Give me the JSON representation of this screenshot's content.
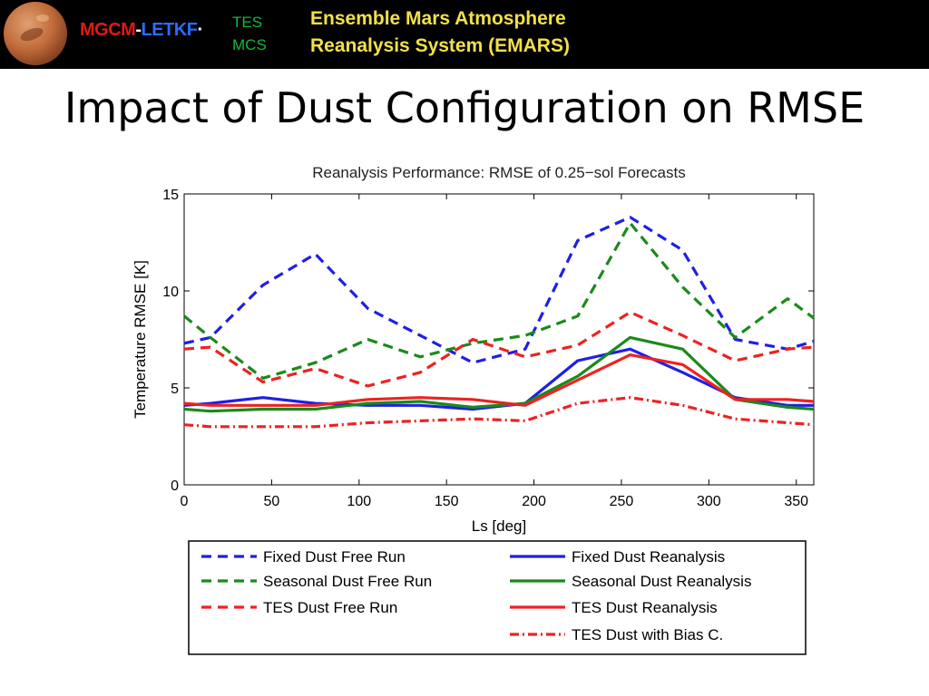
{
  "banner": {
    "logo_part1": "MGCM",
    "logo_sep": "-",
    "logo_part2": "LETKF",
    "logo_dot": "·",
    "instruments": [
      "TES",
      "MCS"
    ],
    "heading_line1": "Ensemble Mars Atmosphere",
    "heading_line2": "Reanalysis System (EMARS)",
    "colors": {
      "background": "#000000",
      "logo_red": "#e01818",
      "logo_blue": "#2a6cff",
      "instrument_green": "#16b83a",
      "heading_yellow": "#f2e04a"
    }
  },
  "slide_title": "Impact of Dust Configuration on RMSE",
  "chart_data": {
    "type": "line",
    "title": "Reanalysis Performance: RMSE of 0.25−sol Forecasts",
    "xlabel": "Ls [deg]",
    "ylabel": "Temperature RMSE [K]",
    "xlim": [
      0,
      360
    ],
    "ylim": [
      0,
      15
    ],
    "xticks": [
      0,
      50,
      100,
      150,
      200,
      250,
      300,
      350
    ],
    "yticks": [
      0,
      5,
      10,
      15
    ],
    "grid": false,
    "legend_position": "below plot",
    "x": [
      0,
      15,
      45,
      75,
      105,
      135,
      165,
      195,
      225,
      255,
      285,
      315,
      345,
      360
    ],
    "series": [
      {
        "name": "Fixed Dust Free Run",
        "color": "#1f1fe6",
        "style": "dashed",
        "values": [
          7.3,
          7.6,
          10.3,
          11.9,
          9.1,
          7.7,
          6.3,
          7.0,
          12.6,
          13.8,
          12.1,
          7.5,
          7.0,
          7.4
        ]
      },
      {
        "name": "Seasonal Dust Free Run",
        "color": "#1a8a1a",
        "style": "dashed",
        "values": [
          8.7,
          7.6,
          5.5,
          6.3,
          7.5,
          6.6,
          7.3,
          7.7,
          8.7,
          13.5,
          10.2,
          7.6,
          9.6,
          8.6
        ]
      },
      {
        "name": "TES Dust Free Run",
        "color": "#ee2222",
        "style": "dashed",
        "values": [
          7.0,
          7.1,
          5.3,
          6.0,
          5.1,
          5.8,
          7.5,
          6.6,
          7.2,
          8.9,
          7.7,
          6.4,
          7.0,
          7.1
        ]
      },
      {
        "name": "Fixed Dust Reanalysis",
        "color": "#1f1fe6",
        "style": "solid",
        "values": [
          4.1,
          4.2,
          4.5,
          4.2,
          4.1,
          4.1,
          3.9,
          4.2,
          6.4,
          7.0,
          5.8,
          4.5,
          4.1,
          4.1
        ]
      },
      {
        "name": "Seasonal Dust Reanalysis",
        "color": "#1a8a1a",
        "style": "solid",
        "values": [
          3.9,
          3.8,
          3.9,
          3.9,
          4.2,
          4.3,
          4.0,
          4.2,
          5.6,
          7.6,
          7.0,
          4.4,
          4.0,
          3.9
        ]
      },
      {
        "name": "TES Dust Reanalysis",
        "color": "#ee2222",
        "style": "solid",
        "values": [
          4.2,
          4.1,
          4.1,
          4.1,
          4.4,
          4.5,
          4.4,
          4.1,
          5.4,
          6.7,
          6.2,
          4.4,
          4.4,
          4.3
        ]
      },
      {
        "name": "TES Dust with Bias C.",
        "color": "#ee2222",
        "style": "dashdot",
        "values": [
          3.1,
          3.0,
          3.0,
          3.0,
          3.2,
          3.3,
          3.4,
          3.3,
          4.2,
          4.5,
          4.1,
          3.4,
          3.2,
          3.1
        ]
      }
    ]
  }
}
